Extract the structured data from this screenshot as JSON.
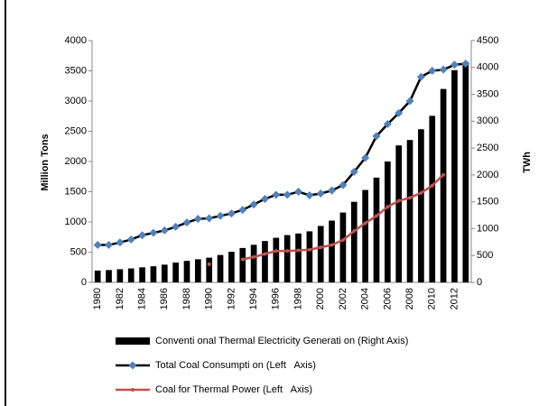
{
  "chart_data": {
    "type": "bar-line",
    "y_label": "Million Tons",
    "y2_label": "TWh",
    "categories": [
      "1980",
      null,
      "1982",
      null,
      "1984",
      null,
      "1986",
      null,
      "1988",
      null,
      "1990",
      null,
      "1992",
      null,
      "1994",
      null,
      "1996",
      null,
      "1998",
      null,
      "2000",
      null,
      "2002",
      null,
      "2004",
      null,
      "2006",
      null,
      "2008",
      null,
      "2010",
      null,
      "2012",
      null
    ],
    "ylim": [
      0,
      4000
    ],
    "yticks": [
      0,
      500,
      1000,
      1500,
      2000,
      2500,
      3000,
      3500,
      4000
    ],
    "y2lim": [
      0,
      4500
    ],
    "y2ticks": [
      0,
      500,
      1000,
      1500,
      2000,
      2500,
      3000,
      3500,
      4000,
      4500
    ],
    "series": [
      {
        "name": "Conventi onal Thermal Electricity Generati on (Right Axis)",
        "type": "bar",
        "axis": "y2",
        "color": "#000000",
        "values": [
          220,
          230,
          245,
          260,
          280,
          300,
          330,
          370,
          400,
          430,
          460,
          510,
          570,
          640,
          700,
          770,
          830,
          880,
          910,
          950,
          1050,
          1150,
          1300,
          1500,
          1720,
          1950,
          2250,
          2550,
          2650,
          2850,
          3100,
          3600,
          3950,
          4100
        ]
      },
      {
        "name": "Total Coal Consumpti on (Left   Axis)",
        "type": "line",
        "axis": "y",
        "color": "#4f81bd",
        "line_color": "#000000",
        "marker": "diamond",
        "values": [
          620,
          620,
          660,
          710,
          780,
          820,
          860,
          920,
          990,
          1050,
          1060,
          1100,
          1140,
          1200,
          1290,
          1380,
          1450,
          1450,
          1500,
          1440,
          1470,
          1520,
          1610,
          1830,
          2060,
          2420,
          2620,
          2800,
          3000,
          3400,
          3500,
          3520,
          3600,
          3620
        ]
      },
      {
        "name": "Coal for Thermal Power (Left   Axis)",
        "type": "line",
        "axis": "y",
        "color": "#c0504d",
        "line_color": "#c0504d",
        "marker": "circle",
        "values": [
          null,
          null,
          null,
          null,
          null,
          null,
          null,
          null,
          null,
          null,
          300,
          null,
          null,
          380,
          420,
          470,
          520,
          520,
          530,
          540,
          580,
          620,
          700,
          850,
          980,
          1100,
          1250,
          1350,
          1400,
          1480,
          1600,
          1780,
          null,
          null
        ]
      }
    ]
  }
}
